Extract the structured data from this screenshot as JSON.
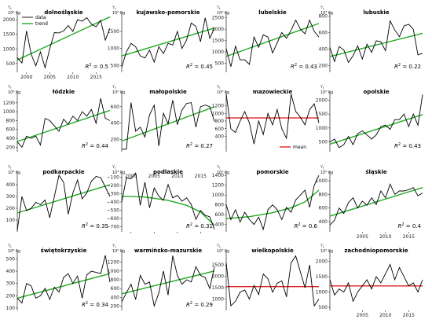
{
  "colors": {
    "data": "#000000",
    "trend": "#22aa22",
    "mean": "#dd2222",
    "axis": "#000000"
  },
  "legend_labels": {
    "data": "data",
    "trend": "trend",
    "mean": "mean"
  },
  "y_symbol": "Y",
  "y_symbol_sub": "t",
  "unit_label": "10⁶ kg",
  "r2_prefix": "R",
  "r2_sup": "2",
  "r2_eq": " = ",
  "chart_data": [
    {
      "type": "line",
      "title": "dolnośląskie",
      "x": [
        1998,
        1999,
        2000,
        2001,
        2002,
        2003,
        2004,
        2005,
        2006,
        2007,
        2008,
        2009,
        2010,
        2011,
        2012,
        2013,
        2014,
        2015,
        2016,
        2017,
        2018
      ],
      "values": [
        700,
        520,
        1620,
        820,
        420,
        900,
        360,
        1000,
        1560,
        1550,
        1620,
        1800,
        1600,
        2000,
        1950,
        2070,
        1850,
        1760,
        1980,
        1300,
        1710
      ],
      "trend": {
        "type": "line",
        "from": [
          1998,
          620
        ],
        "to": [
          2018,
          2100
        ]
      },
      "r2": "0.5",
      "ylim": [
        200,
        2300
      ],
      "yticks": [
        500,
        1000,
        1500,
        2000
      ],
      "xticks": [
        2000,
        2005,
        2010,
        2015
      ],
      "show_xticks": true,
      "show_legend": true
    },
    {
      "type": "line",
      "title": "kujawsko-pomorskie",
      "x": [
        1998,
        1999,
        2000,
        2001,
        2002,
        2003,
        2004,
        2005,
        2006,
        2007,
        2008,
        2009,
        2010,
        2011,
        2012,
        2013,
        2014,
        2015,
        2016,
        2017,
        2018
      ],
      "values": [
        450,
        900,
        1150,
        1050,
        780,
        720,
        950,
        600,
        1050,
        850,
        1150,
        1100,
        1500,
        1000,
        1250,
        1750,
        1650,
        1200,
        1900,
        1300,
        1600
      ],
      "trend": {
        "type": "line",
        "from": [
          1998,
          780
        ],
        "to": [
          2018,
          1600
        ]
      },
      "r2": "0.45",
      "ylim": [
        300,
        2100
      ],
      "yticks": [
        500,
        1000,
        1500,
        2000
      ],
      "xticks": [
        2000,
        2005,
        2010,
        2015
      ],
      "show_xticks": false
    },
    {
      "type": "line",
      "title": "lubelskie",
      "x": [
        1998,
        1999,
        2000,
        2001,
        2002,
        2003,
        2004,
        2005,
        2006,
        2007,
        2008,
        2009,
        2010,
        2011,
        2012,
        2013,
        2014,
        2015,
        2016,
        2017,
        2018
      ],
      "values": [
        1150,
        350,
        1250,
        650,
        650,
        450,
        1650,
        1200,
        1750,
        1650,
        950,
        1400,
        1850,
        1600,
        1950,
        2400,
        2000,
        1800,
        2400,
        1900,
        1650
      ],
      "trend": {
        "type": "line",
        "from": [
          1998,
          800
        ],
        "to": [
          2018,
          2250
        ]
      },
      "r2": "0.43",
      "ylim": [
        100,
        2800
      ],
      "yticks": [
        500,
        1000,
        1500,
        2000,
        2500
      ],
      "xticks": [
        2000,
        2005,
        2010,
        2015
      ],
      "show_xticks": false
    },
    {
      "type": "line",
      "title": "lubuskie",
      "x": [
        1998,
        1999,
        2000,
        2001,
        2002,
        2003,
        2004,
        2005,
        2006,
        2007,
        2008,
        2009,
        2010,
        2011,
        2012,
        2013,
        2014,
        2015,
        2016,
        2017,
        2018
      ],
      "values": [
        420,
        250,
        430,
        390,
        240,
        320,
        440,
        280,
        460,
        360,
        500,
        490,
        380,
        740,
        630,
        550,
        680,
        700,
        640,
        330,
        350
      ],
      "trend": {
        "type": "line",
        "from": [
          1998,
          310
        ],
        "to": [
          2018,
          590
        ]
      },
      "r2": "0.22",
      "ylim": [
        120,
        860
      ],
      "yticks": [
        200,
        400,
        600,
        800
      ],
      "xticks": [
        2000,
        2005,
        2010,
        2015
      ],
      "show_xticks": false
    },
    {
      "type": "line",
      "title": "łódzkie",
      "x": [
        1998,
        1999,
        2000,
        2001,
        2002,
        2003,
        2004,
        2005,
        2006,
        2007,
        2008,
        2009,
        2010,
        2011,
        2012,
        2013,
        2014,
        2015,
        2016,
        2017,
        2018
      ],
      "values": [
        320,
        200,
        450,
        400,
        450,
        250,
        850,
        800,
        680,
        560,
        830,
        720,
        900,
        800,
        1000,
        900,
        1050,
        740,
        1300,
        850,
        800
      ],
      "trend": {
        "type": "line",
        "from": [
          1998,
          330
        ],
        "to": [
          2018,
          1030
        ]
      },
      "r2": "0.44",
      "ylim": [
        100,
        1480
      ],
      "yticks": [
        200,
        400,
        600,
        800,
        1000,
        1200,
        1400
      ],
      "xticks": [
        2000,
        2005,
        2010,
        2015
      ],
      "show_xticks": false
    },
    {
      "type": "line",
      "title": "małopolskie",
      "x": [
        1998,
        1999,
        2000,
        2001,
        2002,
        2003,
        2004,
        2005,
        2006,
        2007,
        2008,
        2009,
        2010,
        2011,
        2012,
        2013,
        2014,
        2015,
        2016,
        2017,
        2018
      ],
      "values": [
        80,
        80,
        650,
        300,
        350,
        230,
        500,
        620,
        120,
        520,
        390,
        680,
        380,
        560,
        640,
        650,
        350,
        600,
        620,
        600,
        420
      ],
      "trend": {
        "type": "line",
        "from": [
          1998,
          180
        ],
        "to": [
          2018,
          600
        ]
      },
      "r2": "0.27",
      "ylim": [
        50,
        800
      ],
      "yticks": [
        200,
        400,
        600
      ],
      "xticks": [
        2000,
        2005,
        2010,
        2015
      ],
      "show_xticks": false
    },
    {
      "type": "line",
      "title": "mazowieckie",
      "x": [
        1998,
        1999,
        2000,
        2001,
        2002,
        2003,
        2004,
        2005,
        2006,
        2007,
        2008,
        2009,
        2010,
        2011,
        2012,
        2013,
        2014,
        2015,
        2016,
        2017,
        2018
      ],
      "values": [
        1500,
        600,
        500,
        800,
        1050,
        750,
        200,
        800,
        450,
        1000,
        700,
        1100,
        600,
        350,
        1500,
        1050,
        900,
        700,
        1100,
        1250,
        750
      ],
      "trend": {
        "type": "hline",
        "value": 880
      },
      "r2": "",
      "ylim": [
        0,
        1600
      ],
      "yticks": [
        400,
        600,
        800,
        1000,
        1200
      ],
      "xticks": [
        2000,
        2005,
        2010,
        2015
      ],
      "show_xticks": false,
      "show_mean_legend": true
    },
    {
      "type": "line",
      "title": "opolskie",
      "x": [
        1998,
        1999,
        2000,
        2001,
        2002,
        2003,
        2004,
        2005,
        2006,
        2007,
        2008,
        2009,
        2010,
        2011,
        2012,
        2013,
        2014,
        2015,
        2016,
        2017,
        2018
      ],
      "values": [
        500,
        600,
        300,
        400,
        700,
        400,
        800,
        900,
        750,
        600,
        750,
        1050,
        1100,
        950,
        1300,
        1300,
        1500,
        1050,
        1500,
        1100,
        2200
      ],
      "trend": {
        "type": "line",
        "from": [
          1998,
          420
        ],
        "to": [
          2018,
          1480
        ]
      },
      "r2": "0.43",
      "ylim": [
        150,
        2350
      ],
      "yticks": [
        500,
        1000,
        1500,
        2000
      ],
      "xticks": [
        2000,
        2005,
        2010,
        2015
      ],
      "show_xticks": false
    },
    {
      "type": "line",
      "title": "podkarpackie",
      "x": [
        1998,
        1999,
        2000,
        2001,
        2002,
        2003,
        2004,
        2005,
        2006,
        2007,
        2008,
        2009,
        2010,
        2011,
        2012,
        2013,
        2014,
        2015,
        2016,
        2017,
        2018
      ],
      "values": [
        10,
        300,
        180,
        200,
        250,
        230,
        270,
        120,
        300,
        480,
        420,
        150,
        330,
        440,
        280,
        330,
        430,
        470,
        460,
        380,
        300
      ],
      "trend": {
        "type": "line",
        "from": [
          1998,
          160
        ],
        "to": [
          2018,
          400
        ]
      },
      "r2": "0.35",
      "ylim": [
        0,
        520
      ],
      "yticks": [
        100,
        200,
        300,
        400,
        500
      ],
      "xticks": [
        2000,
        2005,
        2010,
        2015
      ],
      "show_xticks": false
    },
    {
      "type": "line",
      "title": "podlaskie",
      "x": [
        1998,
        1999,
        2000,
        2001,
        2002,
        2003,
        2004,
        2005,
        2006,
        2007,
        2008,
        2009,
        2010,
        2011,
        2012,
        2013,
        2014,
        2015,
        2016,
        2017,
        2018
      ],
      "values": [
        -400,
        -110,
        -120,
        -50,
        -440,
        -160,
        -470,
        -230,
        -330,
        -380,
        -190,
        -350,
        -320,
        -390,
        -350,
        -430,
        -610,
        -500,
        -560,
        -580,
        -730
      ],
      "trend": {
        "type": "curve",
        "points": [
          [
            1998,
            -330
          ],
          [
            2003,
            -340
          ],
          [
            2008,
            -380
          ],
          [
            2012,
            -440
          ],
          [
            2015,
            -520
          ],
          [
            2018,
            -680
          ]
        ]
      },
      "r2": "0.31",
      "ylim": [
        -760,
        -20
      ],
      "yticks": [
        -100,
        -200,
        -300,
        -400,
        -500,
        -600,
        -700
      ],
      "xticks": [
        2000,
        2005,
        2010,
        2015
      ],
      "show_xticks": true,
      "xticks_top": true
    },
    {
      "type": "line",
      "title": "pomorskie",
      "x": [
        1998,
        1999,
        2000,
        2001,
        2002,
        2003,
        2004,
        2005,
        2006,
        2007,
        2008,
        2009,
        2010,
        2011,
        2012,
        2013,
        2014,
        2015,
        2016,
        2017,
        2018
      ],
      "values": [
        800,
        500,
        700,
        450,
        650,
        500,
        400,
        550,
        300,
        700,
        800,
        700,
        500,
        750,
        650,
        900,
        1000,
        1100,
        750,
        1200,
        1400
      ],
      "trend": {
        "type": "curve",
        "points": [
          [
            1998,
            520
          ],
          [
            2003,
            560
          ],
          [
            2008,
            640
          ],
          [
            2012,
            740
          ],
          [
            2015,
            860
          ],
          [
            2018,
            1100
          ]
        ]
      },
      "r2": "0.6",
      "ylim": [
        250,
        1500
      ],
      "yticks": [
        400,
        600,
        800,
        1000,
        1200,
        1400
      ],
      "xticks": [
        2000,
        2005,
        2010,
        2015
      ],
      "show_xticks": false
    },
    {
      "type": "line",
      "title": "śląskie",
      "x": [
        1998,
        1999,
        2000,
        2001,
        2002,
        2003,
        2004,
        2005,
        2006,
        2007,
        2008,
        2009,
        2010,
        2011,
        2012,
        2013,
        2014,
        2015,
        2016,
        2017,
        2018
      ],
      "values": [
        350,
        420,
        600,
        520,
        680,
        750,
        600,
        700,
        640,
        750,
        650,
        850,
        750,
        950,
        800,
        850,
        850,
        870,
        900,
        780,
        820
      ],
      "trend": {
        "type": "line",
        "from": [
          1998,
          480
        ],
        "to": [
          2018,
          900
        ]
      },
      "r2": "0.4",
      "ylim": [
        250,
        1150
      ],
      "yticks": [
        400,
        600,
        800,
        1000
      ],
      "xticks": [
        2005,
        2010,
        2015
      ],
      "show_xticks": true
    },
    {
      "type": "line",
      "title": "świętokrzyskie",
      "x": [
        1998,
        1999,
        2000,
        2001,
        2002,
        2003,
        2004,
        2005,
        2006,
        2007,
        2008,
        2009,
        2010,
        2011,
        2012,
        2013,
        2014,
        2015,
        2016,
        2017,
        2018
      ],
      "values": [
        180,
        140,
        300,
        280,
        180,
        200,
        260,
        170,
        270,
        230,
        350,
        380,
        300,
        360,
        180,
        370,
        400,
        390,
        380,
        530,
        310
      ],
      "trend": {
        "type": "line",
        "from": [
          1998,
          180
        ],
        "to": [
          2018,
          380
        ]
      },
      "r2": "0.34",
      "ylim": [
        80,
        580
      ],
      "yticks": [
        100,
        200,
        300,
        400,
        500
      ],
      "xticks": [
        2000,
        2005,
        2010,
        2015
      ],
      "show_xticks": false
    },
    {
      "type": "line",
      "title": "warmińsko-mazurskie",
      "x": [
        1998,
        1999,
        2000,
        2001,
        2002,
        2003,
        2004,
        2005,
        2006,
        2007,
        2008,
        2009,
        2010,
        2011,
        2012,
        2013,
        2014,
        2015,
        2016,
        2017,
        2018
      ],
      "values": [
        300,
        500,
        700,
        350,
        900,
        700,
        750,
        200,
        500,
        1000,
        450,
        1350,
        900,
        700,
        800,
        750,
        1100,
        900,
        850,
        600,
        1100
      ],
      "trend": {
        "type": "line",
        "from": [
          1998,
          480
        ],
        "to": [
          2018,
          1000
        ]
      },
      "r2": "0.29",
      "ylim": [
        100,
        1500
      ],
      "yticks": [
        200,
        400,
        600,
        800,
        1000,
        1200,
        1400
      ],
      "xticks": [
        2000,
        2005,
        2010,
        2015
      ],
      "show_xticks": false
    },
    {
      "type": "line",
      "title": "wielkopolskie",
      "x": [
        1998,
        1999,
        2000,
        2001,
        2002,
        2003,
        2004,
        2005,
        2006,
        2007,
        2008,
        2009,
        2010,
        2011,
        2012,
        2013,
        2014,
        2015,
        2016,
        2017,
        2018
      ],
      "values": [
        2600,
        700,
        900,
        1300,
        1400,
        1000,
        1600,
        1200,
        2100,
        1900,
        1300,
        1700,
        1800,
        1100,
        2600,
        2900,
        2200,
        1500,
        2500,
        700,
        1000
      ],
      "trend": {
        "type": "hline",
        "value": 1550
      },
      "r2": "",
      "ylim": [
        500,
        3200
      ],
      "yticks": [
        1000,
        1500,
        2000,
        2500,
        3000
      ],
      "xticks": [
        2000,
        2005,
        2010,
        2015
      ],
      "show_xticks": false
    },
    {
      "type": "line",
      "title": "zachodniopomorskie",
      "x": [
        1998,
        1999,
        2000,
        2001,
        2002,
        2003,
        2004,
        2005,
        2006,
        2007,
        2008,
        2009,
        2010,
        2011,
        2012,
        2013,
        2014,
        2015,
        2016,
        2017,
        2018
      ],
      "values": [
        1400,
        900,
        1100,
        1000,
        1300,
        700,
        1000,
        1200,
        1400,
        1100,
        1500,
        1300,
        1600,
        1900,
        1400,
        1800,
        1500,
        1200,
        1300,
        1000,
        1400
      ],
      "trend": {
        "type": "hline",
        "value": 1200
      },
      "r2": "",
      "ylim": [
        400,
        2400
      ],
      "yticks": [
        500,
        1000,
        1500,
        2000
      ],
      "xticks": [
        2005,
        2010,
        2015
      ],
      "show_xticks": true
    }
  ]
}
